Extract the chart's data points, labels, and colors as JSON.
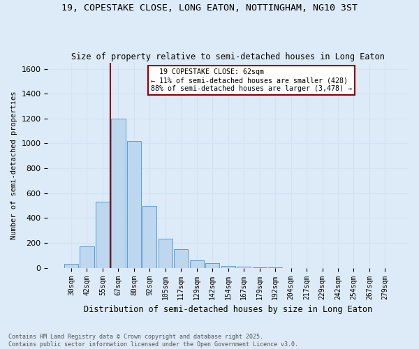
{
  "title": "19, COPESTAKE CLOSE, LONG EATON, NOTTINGHAM, NG10 3ST",
  "subtitle": "Size of property relative to semi-detached houses in Long Eaton",
  "xlabel": "Distribution of semi-detached houses by size in Long Eaton",
  "ylabel": "Number of semi-detached properties",
  "footer": "Contains HM Land Registry data © Crown copyright and database right 2025.\nContains public sector information licensed under the Open Government Licence v3.0.",
  "categories": [
    "30sqm",
    "42sqm",
    "55sqm",
    "67sqm",
    "80sqm",
    "92sqm",
    "105sqm",
    "117sqm",
    "129sqm",
    "142sqm",
    "154sqm",
    "167sqm",
    "179sqm",
    "192sqm",
    "204sqm",
    "217sqm",
    "229sqm",
    "242sqm",
    "254sqm",
    "267sqm",
    "279sqm"
  ],
  "values": [
    30,
    170,
    530,
    1200,
    1020,
    500,
    235,
    150,
    60,
    35,
    15,
    10,
    5,
    2,
    1,
    0,
    0,
    0,
    0,
    0,
    0
  ],
  "bar_color": "#bdd7ee",
  "bar_edge_color": "#5b9bd5",
  "grid_color": "#d0e4f5",
  "background_color": "#ddeaf7",
  "annotation_box_color": "#ffffff",
  "annotation_border_color": "#8b0000",
  "vline_color": "#8b0000",
  "property_label": "19 COPESTAKE CLOSE: 62sqm",
  "pct_smaller": 11,
  "count_smaller": 428,
  "pct_larger": 88,
  "count_larger": 3478,
  "ylim": [
    0,
    1650
  ],
  "figwidth": 6.0,
  "figheight": 5.0,
  "dpi": 100
}
